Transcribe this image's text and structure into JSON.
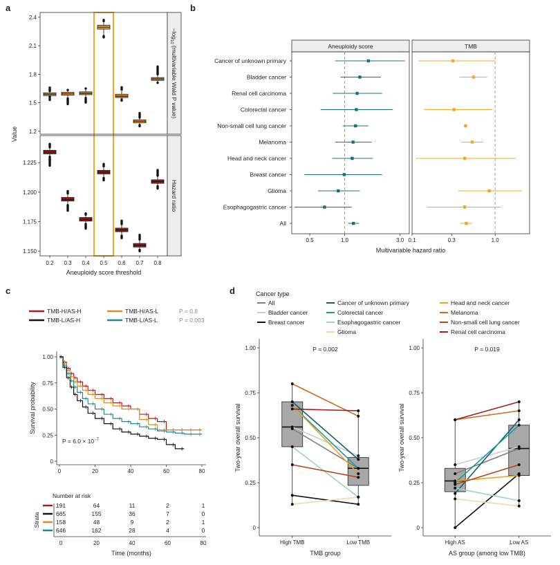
{
  "panel_labels": {
    "a": "a",
    "b": "b",
    "c": "c",
    "d": "d"
  },
  "colors": {
    "orange": "#F5A623",
    "darkred": "#A61C1C",
    "teal": "#1B6F78",
    "highlight": "#F5A623",
    "strip": "#EDEDED",
    "box": "#A8A8A8"
  },
  "chart_data": [
    {
      "id": "a",
      "type": "box",
      "xlabel": "Aneuploidy score threshold",
      "ylabel": "Value",
      "x_ticks": [
        "0.2",
        "0.3",
        "0.4",
        "0.5",
        "0.6",
        "0.7",
        "0.8"
      ],
      "highlight": "0.5",
      "facets": [
        {
          "strip": "−log10 (multivariable Wald P value)",
          "strip_main": "−log",
          "strip_sub": "10",
          "strip_rest": " (multivariable Wald P value)",
          "ylim": [
            1.17,
            2.45
          ],
          "y_ticks": [
            "1.2",
            "1.5",
            "1.8",
            "2.1",
            "2.4"
          ],
          "y_tick_values": [
            1.2,
            1.5,
            1.8,
            2.1,
            2.4
          ],
          "color": "orange",
          "boxes": [
            {
              "x": "0.2",
              "q1": 1.575,
              "median": 1.59,
              "q3": 1.605,
              "whisker_low": 1.565,
              "whisker_high": 1.625,
              "outlier_low": 1.52,
              "outlier_high": 1.67
            },
            {
              "x": "0.3",
              "q1": 1.58,
              "median": 1.595,
              "q3": 1.61,
              "whisker_low": 1.545,
              "whisker_high": 1.635,
              "outlier_low": 1.48,
              "outlier_high": 1.64
            },
            {
              "x": "0.4",
              "q1": 1.585,
              "median": 1.6,
              "q3": 1.615,
              "whisker_low": 1.55,
              "whisker_high": 1.65,
              "outlier_low": 1.5,
              "outlier_high": 1.66
            },
            {
              "x": "0.5",
              "q1": 2.275,
              "median": 2.295,
              "q3": 2.315,
              "whisker_low": 2.2,
              "whisker_high": 2.36,
              "outlier_low": 2.18,
              "outlier_high": 2.38
            },
            {
              "x": "0.6",
              "q1": 1.555,
              "median": 1.57,
              "q3": 1.59,
              "whisker_low": 1.535,
              "whisker_high": 1.64,
              "outlier_low": 1.52,
              "outlier_high": 1.67
            },
            {
              "x": "0.7",
              "q1": 1.29,
              "median": 1.305,
              "q3": 1.32,
              "whisker_low": 1.265,
              "whisker_high": 1.345,
              "outlier_low": 1.25,
              "outlier_high": 1.4
            },
            {
              "x": "0.8",
              "q1": 1.735,
              "median": 1.75,
              "q3": 1.765,
              "whisker_low": 1.71,
              "whisker_high": 1.8,
              "outlier_low": 1.7,
              "outlier_high": 1.89
            }
          ]
        },
        {
          "strip": "Hazard ratio",
          "ylim": [
            1.146,
            1.248
          ],
          "y_ticks": [
            "1.150",
            "1.175",
            "1.200",
            "1.225"
          ],
          "y_tick_values": [
            1.15,
            1.175,
            1.2,
            1.225
          ],
          "color": "darkred",
          "boxes": [
            {
              "x": "0.2",
              "q1": 1.2325,
              "median": 1.234,
              "q3": 1.2355,
              "whisker_low": 1.23,
              "whisker_high": 1.238,
              "outlier_low": 1.222,
              "outlier_high": 1.241
            },
            {
              "x": "0.3",
              "q1": 1.1925,
              "median": 1.194,
              "q3": 1.1955,
              "whisker_low": 1.189,
              "whisker_high": 1.199,
              "outlier_low": 1.184,
              "outlier_high": 1.201
            },
            {
              "x": "0.4",
              "q1": 1.1755,
              "median": 1.177,
              "q3": 1.1785,
              "whisker_low": 1.173,
              "whisker_high": 1.181,
              "outlier_low": 1.169,
              "outlier_high": 1.182
            },
            {
              "x": "0.5",
              "q1": 1.2155,
              "median": 1.217,
              "q3": 1.2185,
              "whisker_low": 1.212,
              "whisker_high": 1.222,
              "outlier_low": 1.21,
              "outlier_high": 1.224
            },
            {
              "x": "0.6",
              "q1": 1.1665,
              "median": 1.168,
              "q3": 1.1695,
              "whisker_low": 1.163,
              "whisker_high": 1.173,
              "outlier_low": 1.161,
              "outlier_high": 1.176
            },
            {
              "x": "0.7",
              "q1": 1.1535,
              "median": 1.155,
              "q3": 1.1565,
              "whisker_low": 1.151,
              "whisker_high": 1.16,
              "outlier_low": 1.15,
              "outlier_high": 1.164
            },
            {
              "x": "0.8",
              "q1": 1.2075,
              "median": 1.209,
              "q3": 1.2105,
              "whisker_low": 1.205,
              "whisker_high": 1.214,
              "outlier_low": 1.203,
              "outlier_high": 1.219
            }
          ]
        }
      ]
    },
    {
      "id": "b",
      "type": "forest",
      "xlabel": "Multivariable hazard ratio",
      "categories": [
        "Cancer of unknown primary",
        "Bladder cancer",
        "Renal cell carcinoma",
        "Colorectal cancer",
        "Non-small cell lung cancer",
        "Melanoma",
        "Head and neck cancer",
        "Breast cancer",
        "Glioma",
        "Esophagogastric cancer",
        "All"
      ],
      "facets": [
        {
          "strip": "Aneuploidy score",
          "color": "teal",
          "xlim": [
            0.35,
            3.6
          ],
          "x_ticks": [
            "0.5",
            "1.0",
            "3.0"
          ],
          "x_tick_values": [
            0.5,
            1.0,
            3.0
          ],
          "ref": 1.0,
          "estimates": [
            1.6,
            1.35,
            1.28,
            1.26,
            1.24,
            1.18,
            1.16,
            0.99,
            0.88,
            0.67,
            1.19
          ],
          "lower": [
            0.83,
            0.92,
            0.79,
            0.62,
            0.96,
            0.83,
            0.78,
            0.45,
            0.59,
            0.37,
            1.07
          ],
          "upper": [
            3.3,
            2.05,
            2.1,
            2.6,
            1.6,
            1.7,
            1.75,
            2.1,
            1.35,
            1.15,
            1.33
          ]
        },
        {
          "strip": "TMB",
          "color": "orange",
          "xlim": [
            0.1,
            2.6
          ],
          "x_ticks": [
            "0.1",
            "0.3",
            "1.0"
          ],
          "x_tick_values": [
            0.1,
            0.3,
            1.0
          ],
          "ref": 1.0,
          "estimates": [
            0.31,
            0.55,
            null,
            0.32,
            0.44,
            0.53,
            0.43,
            null,
            0.85,
            0.43,
            0.45
          ],
          "lower": [
            0.12,
            0.37,
            null,
            0.14,
            0.43,
            0.39,
            0.11,
            null,
            0.36,
            0.15,
            0.38
          ],
          "upper": [
            1.0,
            0.8,
            null,
            0.93,
            0.45,
            0.72,
            1.78,
            null,
            2.1,
            1.17,
            0.53
          ]
        }
      ]
    },
    {
      "id": "c",
      "type": "line",
      "xlabel": "Time (months)",
      "ylabel": "Survival probability",
      "x_ticks": [
        "0",
        "20",
        "40",
        "60",
        "80"
      ],
      "y_ticks": [
        "0",
        "0.25",
        "0.50",
        "0.75",
        "1.00"
      ],
      "annotation_prefix": "P = 6.0 × 10",
      "annotation_exp": "−7",
      "series": [
        {
          "name": "TMB-H/AS-H",
          "color": "#A61C1C",
          "x": [
            0,
            2,
            4,
            6,
            8,
            10,
            13,
            16,
            20,
            25,
            30,
            35,
            40,
            45,
            50,
            55,
            60,
            65,
            70,
            75,
            80
          ],
          "y": [
            1.0,
            0.95,
            0.89,
            0.84,
            0.8,
            0.76,
            0.72,
            0.68,
            0.64,
            0.6,
            0.56,
            0.53,
            0.5,
            0.45,
            0.41,
            0.38,
            0.3,
            0.3,
            0.3,
            0.3,
            0.3
          ]
        },
        {
          "name": "TMB-H/AS-L",
          "color": "#D98C1F",
          "x": [
            0,
            2,
            4,
            6,
            8,
            10,
            13,
            16,
            20,
            25,
            30,
            35,
            40,
            45,
            50,
            55,
            60,
            65,
            70,
            75,
            80
          ],
          "y": [
            1.0,
            0.94,
            0.87,
            0.81,
            0.76,
            0.72,
            0.68,
            0.64,
            0.6,
            0.56,
            0.53,
            0.5,
            0.5,
            0.4,
            0.35,
            0.3,
            0.3,
            0.3,
            0.3,
            0.3,
            0.3
          ]
        },
        {
          "name": "TMB-L/AS-L",
          "color": "#1B8A8F",
          "x": [
            0,
            2,
            4,
            6,
            8,
            10,
            13,
            16,
            20,
            25,
            30,
            35,
            40,
            45,
            50,
            55,
            60,
            65,
            70,
            75,
            80
          ],
          "y": [
            1.0,
            0.92,
            0.84,
            0.77,
            0.71,
            0.66,
            0.6,
            0.55,
            0.5,
            0.45,
            0.41,
            0.38,
            0.36,
            0.33,
            0.31,
            0.29,
            0.28,
            0.27,
            0.26,
            0.26,
            0.26
          ]
        },
        {
          "name": "TMB-L/AS-H",
          "color": "#111111",
          "x": [
            0,
            2,
            4,
            6,
            8,
            10,
            13,
            16,
            20,
            25,
            30,
            35,
            40,
            45,
            50,
            55,
            60,
            65,
            70
          ],
          "y": [
            1.0,
            0.9,
            0.8,
            0.71,
            0.64,
            0.58,
            0.52,
            0.46,
            0.41,
            0.36,
            0.31,
            0.28,
            0.26,
            0.24,
            0.22,
            0.21,
            0.16,
            0.12,
            0.12
          ]
        }
      ],
      "legend": [
        {
          "name": "TMB-H/AS-H",
          "color": "#A61C1C",
          "p": ""
        },
        {
          "name": "TMB-H/AS-L",
          "color": "#D98C1F",
          "p": "P = 0.8"
        },
        {
          "name": "TMB-L/AS-H",
          "color": "#111111",
          "p": ""
        },
        {
          "name": "TMB-L/AS-L",
          "color": "#1B8A8F",
          "p": "P = 0.003"
        }
      ],
      "risk_table": {
        "title": "Number at risk",
        "strata_label": "Strata",
        "rows": [
          {
            "color": "#A61C1C",
            "values": [
              "191",
              "64",
              "11",
              "2",
              "1"
            ]
          },
          {
            "color": "#111111",
            "values": [
              "665",
              "155",
              "36",
              "7",
              "0"
            ]
          },
          {
            "color": "#D98C1F",
            "values": [
              "158",
              "48",
              "9",
              "2",
              "1"
            ]
          },
          {
            "color": "#1B8A8F",
            "values": [
              "646",
              "162",
              "28",
              "4",
              "0"
            ]
          }
        ],
        "x_ticks": [
          "0",
          "20",
          "40",
          "60",
          "80"
        ],
        "xlabel": "Time (months)"
      }
    },
    {
      "id": "d",
      "type": "box",
      "legend_title": "Cancer type",
      "legend": [
        {
          "name": "All",
          "color": "#7F7F7F"
        },
        {
          "name": "Bladder cancer",
          "color": "#CCCCCC"
        },
        {
          "name": "Breast cancer",
          "color": "#111111"
        },
        {
          "name": "Cancer of unknown primary",
          "color": "#155E6B"
        },
        {
          "name": "Colorectal cancer",
          "color": "#1A9AA0"
        },
        {
          "name": "Esophagogastric cancer",
          "color": "#9AD3C4"
        },
        {
          "name": "Glioma",
          "color": "#F2D9A6"
        },
        {
          "name": "Head and neck cancer",
          "color": "#F0A21E"
        },
        {
          "name": "Melanoma",
          "color": "#D2691E"
        },
        {
          "name": "Non-small cell lung cancer",
          "color": "#B5441B"
        },
        {
          "name": "Renal cell carcinoma",
          "color": "#A61C1C"
        }
      ],
      "panels": [
        {
          "ylabel": "Two-year overall survival",
          "xlabel": "TMB group",
          "p": "P = 0.002",
          "categories": [
            "High TMB",
            "Low TMB"
          ],
          "ylim": [
            0,
            1.0
          ],
          "y_ticks": [
            "0",
            "0.25",
            "0.50",
            "0.75",
            "1.00"
          ],
          "boxes": [
            {
              "q1": 0.45,
              "median": 0.56,
              "q3": 0.7,
              "lo": 0.13,
              "hi": 0.8
            },
            {
              "q1": 0.235,
              "median": 0.33,
              "q3": 0.39,
              "lo": 0.13,
              "hi": 0.65
            }
          ],
          "pairs": [
            {
              "name": "All",
              "values": [
                0.55,
                0.33
              ]
            },
            {
              "name": "Bladder cancer",
              "values": [
                0.56,
                0.4
              ]
            },
            {
              "name": "Breast cancer",
              "values": [
                0.18,
                0.13
              ]
            },
            {
              "name": "Cancer of unknown primary",
              "values": [
                0.7,
                0.38
              ]
            },
            {
              "name": "Colorectal cancer",
              "values": [
                0.68,
                0.33
              ]
            },
            {
              "name": "Esophagogastric cancer",
              "values": [
                0.45,
                0.17
              ]
            },
            {
              "name": "Glioma",
              "values": [
                0.13,
                0.17
              ]
            },
            {
              "name": "Head and neck cancer",
              "values": [
                0.68,
                0.3
              ]
            },
            {
              "name": "Melanoma",
              "values": [
                0.8,
                0.62
              ]
            },
            {
              "name": "Non-small cell lung cancer",
              "values": [
                0.35,
                0.28
              ]
            },
            {
              "name": "Renal cell carcinoma",
              "values": [
                0.66,
                0.65
              ]
            }
          ]
        },
        {
          "ylabel": "Two-year overall survival",
          "xlabel": "AS group (among low TMB)",
          "p": "P = 0.019",
          "categories": [
            "High AS",
            "Low AS"
          ],
          "ylim": [
            0,
            1.0
          ],
          "y_ticks": [
            "0",
            "0.25",
            "0.50",
            "0.75",
            "1.00"
          ],
          "boxes": [
            {
              "q1": 0.2,
              "median": 0.26,
              "q3": 0.33,
              "lo": 0.0,
              "hi": 0.6
            },
            {
              "q1": 0.29,
              "median": 0.44,
              "q3": 0.57,
              "lo": 0.12,
              "hi": 0.7
            }
          ],
          "pairs": [
            {
              "name": "All",
              "values": [
                0.3,
                0.44
              ]
            },
            {
              "name": "Bladder cancer",
              "values": [
                0.35,
                0.45
              ]
            },
            {
              "name": "Breast cancer",
              "values": [
                0.0,
                0.3
              ]
            },
            {
              "name": "Cancer of unknown primary",
              "values": [
                0.19,
                0.6
              ]
            },
            {
              "name": "Colorectal cancer",
              "values": [
                0.25,
                0.57
              ]
            },
            {
              "name": "Esophagogastric cancer",
              "values": [
                0.22,
                0.15
              ]
            },
            {
              "name": "Glioma",
              "values": [
                0.16,
                0.12
              ]
            },
            {
              "name": "Head and neck cancer",
              "values": [
                0.26,
                0.29
              ]
            },
            {
              "name": "Melanoma",
              "values": [
                0.6,
                0.65
              ]
            },
            {
              "name": "Non-small cell lung cancer",
              "values": [
                0.24,
                0.35
              ]
            },
            {
              "name": "Renal cell carcinoma",
              "values": [
                0.6,
                0.7
              ]
            }
          ]
        }
      ]
    }
  ]
}
